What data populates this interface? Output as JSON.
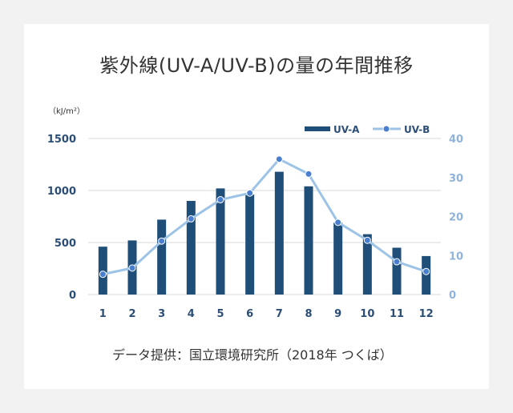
{
  "title": "紫外線(UV-A/UV-B)の量の年間推移",
  "unit_label": "（kJ/m²）",
  "source": "データ提供：国立環境研究所（2018年 つくば）",
  "colors": {
    "uva": "#1f4e79",
    "uvb": "#9dc3e6",
    "uvb_marker": "#4a7fd0",
    "grid": "#d9d9d9"
  },
  "chart_data": {
    "type": "bar+line",
    "categories": [
      "1",
      "2",
      "3",
      "4",
      "5",
      "6",
      "7",
      "8",
      "9",
      "10",
      "11",
      "12"
    ],
    "series": [
      {
        "name": "UV-A",
        "axis": "left",
        "type": "bar",
        "values": [
          460,
          520,
          720,
          900,
          1020,
          960,
          1180,
          1040,
          690,
          580,
          450,
          370
        ]
      },
      {
        "name": "UV-B",
        "axis": "right",
        "type": "line",
        "values": [
          5.2,
          6.8,
          13.7,
          19.4,
          24.3,
          26,
          34.7,
          30.9,
          18.5,
          13.9,
          8.4,
          5.9
        ]
      }
    ],
    "left_axis": {
      "ylim": [
        0,
        1500
      ],
      "ticks": [
        "0",
        "500",
        "1000",
        "1500"
      ]
    },
    "right_axis": {
      "ylim": [
        0,
        40
      ],
      "ticks": [
        "0",
        "10",
        "20",
        "30",
        "40"
      ]
    },
    "grid": true,
    "legend": "top-right"
  }
}
